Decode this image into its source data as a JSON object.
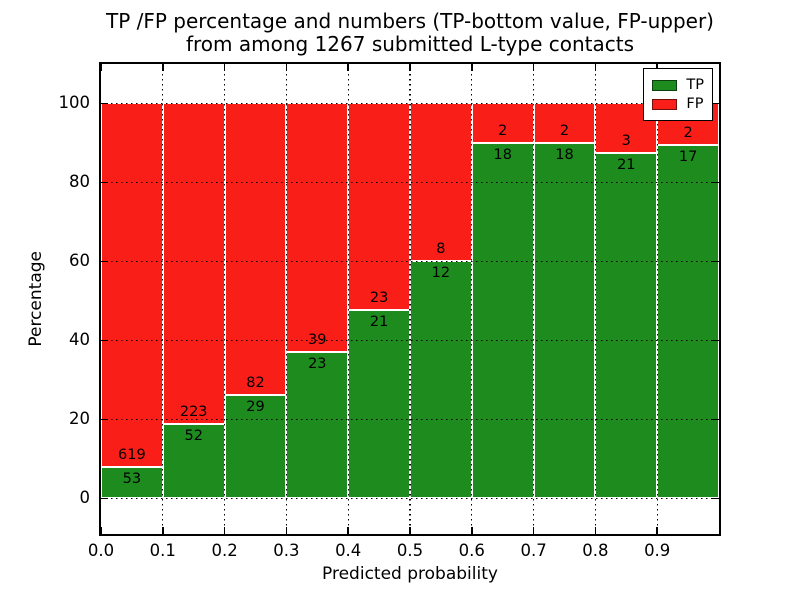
{
  "figure": {
    "title_line1": "TP /FP percentage and numbers (TP-bottom value, FP-upper)",
    "title_line2": "from among 1267 submitted L-type contacts"
  },
  "colors": {
    "tp_green": "#1e8b1e",
    "fp_red": "#fa1e19",
    "bar_edge": "#ffffff",
    "grid": "#000000",
    "background": "#ffffff",
    "text": "#000000"
  },
  "legend": {
    "items": [
      {
        "label": "TP",
        "color": "#1e8b1e"
      },
      {
        "label": "FP",
        "color": "#fa1e19"
      }
    ]
  },
  "chart_data": {
    "type": "bar",
    "stacked": true,
    "normalized_to_percent": true,
    "title": "TP /FP percentage and numbers (TP-bottom value, FP-upper)\nfrom among 1267 submitted L-type contacts",
    "xlabel": "Predicted probability",
    "ylabel": "Percentage",
    "xlim": [
      0.0,
      1.0
    ],
    "ylim": [
      -9,
      110
    ],
    "grid": true,
    "legend_position": "upper right",
    "categories": [
      "0.0-0.1",
      "0.1-0.2",
      "0.2-0.3",
      "0.3-0.4",
      "0.4-0.5",
      "0.5-0.6",
      "0.6-0.7",
      "0.7-0.8",
      "0.8-0.9",
      "0.9-1.0"
    ],
    "series": [
      {
        "name": "TP",
        "color": "#1e8b1e",
        "counts": [
          53,
          52,
          29,
          23,
          21,
          12,
          18,
          18,
          21,
          17
        ]
      },
      {
        "name": "FP",
        "color": "#fa1e19",
        "counts": [
          619,
          223,
          82,
          39,
          23,
          8,
          2,
          2,
          3,
          2
        ]
      }
    ],
    "tp_percent_heights": [
      7.89,
      18.91,
      26.13,
      37.1,
      47.73,
      60.0,
      90.0,
      90.0,
      87.5,
      89.47
    ],
    "x_ticks": [
      {
        "label": "0.0",
        "value": 0.0
      },
      {
        "label": "0.1",
        "value": 0.1
      },
      {
        "label": "0.2",
        "value": 0.2
      },
      {
        "label": "0.3",
        "value": 0.3
      },
      {
        "label": "0.4",
        "value": 0.4
      },
      {
        "label": "0.5",
        "value": 0.5
      },
      {
        "label": "0.6",
        "value": 0.6
      },
      {
        "label": "0.7",
        "value": 0.7
      },
      {
        "label": "0.8",
        "value": 0.8
      },
      {
        "label": "0.9",
        "value": 0.9
      }
    ],
    "y_ticks": [
      {
        "label": "0",
        "value": 0
      },
      {
        "label": "20",
        "value": 20
      },
      {
        "label": "40",
        "value": 40
      },
      {
        "label": "60",
        "value": 60
      },
      {
        "label": "80",
        "value": 80
      },
      {
        "label": "100",
        "value": 100
      }
    ]
  }
}
